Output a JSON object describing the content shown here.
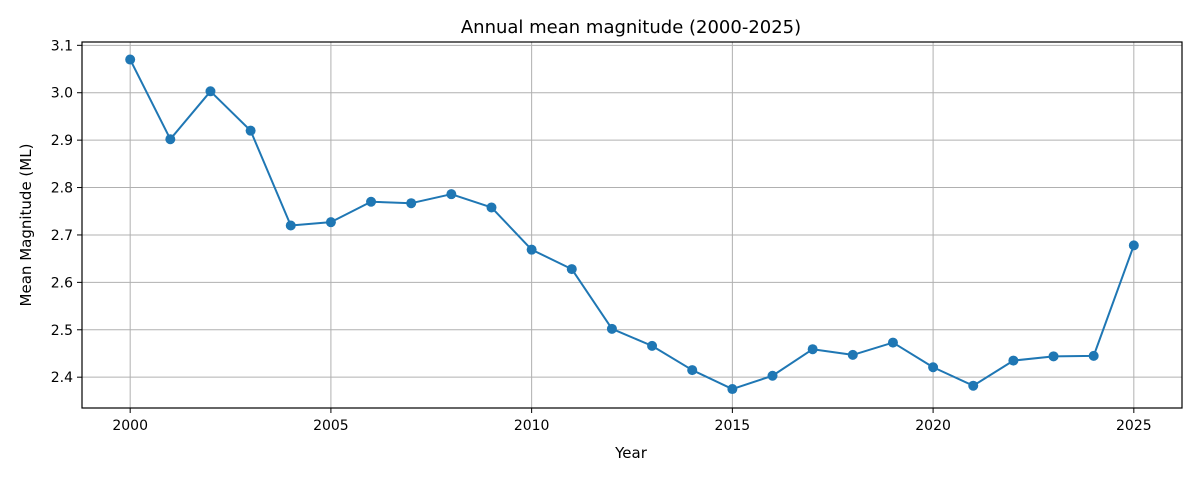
{
  "chart_data": {
    "type": "line",
    "title": "Annual mean magnitude (2000-2025)",
    "xlabel": "Year",
    "ylabel": "Mean Magnitude (ML)",
    "xlim": [
      1998.8,
      2026.2
    ],
    "ylim": [
      2.335,
      3.107
    ],
    "xticks": [
      2000,
      2005,
      2010,
      2015,
      2020,
      2025
    ],
    "yticks": [
      2.4,
      2.5,
      2.6,
      2.7,
      2.8,
      2.9,
      3.0,
      3.1
    ],
    "ytick_labels": [
      "2.4",
      "2.5",
      "2.6",
      "2.7",
      "2.8",
      "2.9",
      "3.0",
      "3.1"
    ],
    "grid": true,
    "series": [
      {
        "color": "#1f77b4",
        "marker": "circle",
        "x": [
          2000,
          2001,
          2002,
          2003,
          2004,
          2005,
          2006,
          2007,
          2008,
          2009,
          2010,
          2011,
          2012,
          2013,
          2014,
          2015,
          2016,
          2017,
          2018,
          2019,
          2020,
          2021,
          2022,
          2023,
          2024,
          2025
        ],
        "y": [
          3.07,
          2.902,
          3.003,
          2.92,
          2.72,
          2.727,
          2.77,
          2.767,
          2.786,
          2.758,
          2.669,
          2.628,
          2.502,
          2.466,
          2.415,
          2.375,
          2.403,
          2.459,
          2.447,
          2.473,
          2.421,
          2.382,
          2.435,
          2.444,
          2.445,
          2.678
        ]
      }
    ]
  }
}
